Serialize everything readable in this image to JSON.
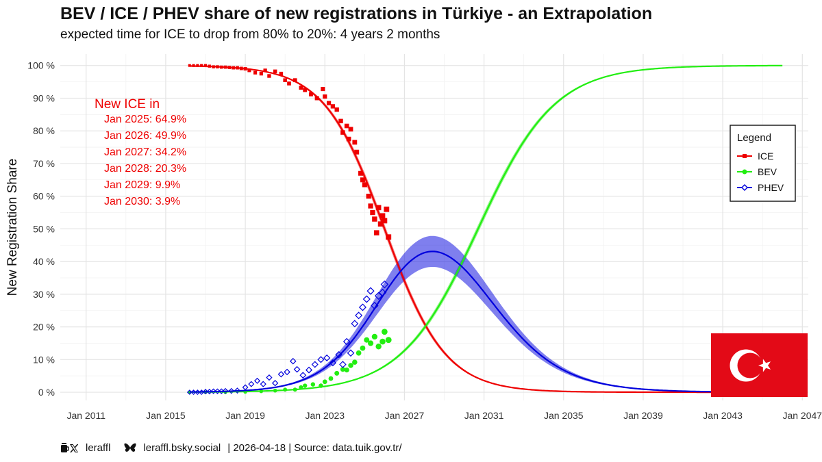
{
  "chart_data": {
    "type": "line",
    "title": "BEV / ICE / PHEV share of new registrations in Türkiye - an Extrapolation",
    "subtitle": "expected time for ICE to drop from 80% to 20%: 4 years 2 months",
    "ylabel": "New Registration Share",
    "xlabel": "",
    "xlim": [
      2009.7,
      2047.3
    ],
    "ylim": [
      -2.5,
      103.5
    ],
    "x_ticks": [
      {
        "value": 2011,
        "label": "Jan 2011"
      },
      {
        "value": 2015,
        "label": "Jan 2015"
      },
      {
        "value": 2019,
        "label": "Jan 2019"
      },
      {
        "value": 2023,
        "label": "Jan 2023"
      },
      {
        "value": 2027,
        "label": "Jan 2027"
      },
      {
        "value": 2031,
        "label": "Jan 2031"
      },
      {
        "value": 2035,
        "label": "Jan 2035"
      },
      {
        "value": 2039,
        "label": "Jan 2039"
      },
      {
        "value": 2043,
        "label": "Jan 2043"
      },
      {
        "value": 2047,
        "label": "Jan 2047"
      }
    ],
    "y_ticks": [
      {
        "value": 0,
        "label": "0 %"
      },
      {
        "value": 10,
        "label": "10 %"
      },
      {
        "value": 20,
        "label": "20 %"
      },
      {
        "value": 30,
        "label": "30 %"
      },
      {
        "value": 40,
        "label": "40 %"
      },
      {
        "value": 50,
        "label": "50 %"
      },
      {
        "value": 60,
        "label": "60 %"
      },
      {
        "value": 70,
        "label": "70 %"
      },
      {
        "value": 80,
        "label": "80 %"
      },
      {
        "value": 90,
        "label": "90 %"
      },
      {
        "value": 100,
        "label": "100 %"
      }
    ],
    "series": [
      {
        "name": "ICE",
        "color": "#ee0000",
        "fit": {
          "model": "logistic_decreasing",
          "midpoint": 2026.0,
          "rate": 0.66,
          "x_range": [
            2016.2,
            2045.9
          ],
          "band_halfwidth": 1.3
        },
        "observed": [
          [
            2016.2,
            100
          ],
          [
            2016.4,
            100
          ],
          [
            2016.6,
            100
          ],
          [
            2016.8,
            100
          ],
          [
            2017.0,
            100
          ],
          [
            2017.2,
            99.8
          ],
          [
            2017.4,
            99.6
          ],
          [
            2017.6,
            99.6
          ],
          [
            2017.8,
            99.5
          ],
          [
            2018.0,
            99.5
          ],
          [
            2018.2,
            99.4
          ],
          [
            2018.4,
            99.3
          ],
          [
            2018.6,
            99.3
          ],
          [
            2018.8,
            99.1
          ],
          [
            2019.0,
            99.0
          ],
          [
            2019.2,
            98.5
          ],
          [
            2019.5,
            97.8
          ],
          [
            2019.8,
            97.5
          ],
          [
            2020.0,
            98.5
          ],
          [
            2020.2,
            96.8
          ],
          [
            2020.5,
            98.2
          ],
          [
            2020.8,
            97.5
          ],
          [
            2021.0,
            95.5
          ],
          [
            2021.2,
            94.5
          ],
          [
            2021.5,
            95.5
          ],
          [
            2021.8,
            93.2
          ],
          [
            2022.0,
            92.5
          ],
          [
            2022.3,
            91.2
          ],
          [
            2022.6,
            90.0
          ],
          [
            2022.9,
            92.8
          ],
          [
            2023.0,
            90.5
          ],
          [
            2023.2,
            88.5
          ],
          [
            2023.4,
            87.5
          ],
          [
            2023.6,
            86.5
          ],
          [
            2023.8,
            83.0
          ],
          [
            2023.9,
            79.5
          ],
          [
            2024.1,
            81.5
          ],
          [
            2024.2,
            77.5
          ],
          [
            2024.3,
            80.5
          ],
          [
            2024.5,
            76.5
          ],
          [
            2024.6,
            73.5
          ],
          [
            2024.8,
            67.0
          ],
          [
            2024.9,
            65.0
          ],
          [
            2025.0,
            63.5
          ],
          [
            2025.2,
            60.0
          ],
          [
            2025.3,
            57.0
          ],
          [
            2025.4,
            55.0
          ],
          [
            2025.5,
            53.0
          ],
          [
            2025.6,
            48.8
          ],
          [
            2025.7,
            56.5
          ],
          [
            2025.8,
            51.5
          ],
          [
            2025.9,
            54.0
          ],
          [
            2026.0,
            52.5
          ],
          [
            2026.1,
            56.0
          ],
          [
            2026.2,
            47.5
          ]
        ]
      },
      {
        "name": "BEV",
        "color": "#22ee11",
        "fit": {
          "model": "logistic_increasing",
          "midpoint": 2030.7,
          "rate": 0.52,
          "x_range": [
            2016.2,
            2046.0
          ],
          "band_halfwidth": 1.2
        },
        "observed": [
          [
            2016.2,
            0
          ],
          [
            2017.0,
            0
          ],
          [
            2018.0,
            0
          ],
          [
            2019.0,
            0.1
          ],
          [
            2019.8,
            0.3
          ],
          [
            2020.5,
            0.5
          ],
          [
            2021.0,
            0.8
          ],
          [
            2021.5,
            0.8
          ],
          [
            2021.8,
            1.5
          ],
          [
            2022.0,
            2.0
          ],
          [
            2022.4,
            2.4
          ],
          [
            2022.8,
            2.0
          ],
          [
            2023.0,
            3.2
          ],
          [
            2023.3,
            4.2
          ],
          [
            2023.6,
            5.8
          ],
          [
            2023.9,
            7.0
          ],
          [
            2024.1,
            6.8
          ],
          [
            2024.3,
            8.2
          ],
          [
            2024.5,
            9.2
          ],
          [
            2024.7,
            12.0
          ],
          [
            2024.9,
            13.5
          ],
          [
            2025.1,
            16.0
          ],
          [
            2025.3,
            15.0
          ],
          [
            2025.5,
            17.0
          ],
          [
            2025.7,
            14.0
          ],
          [
            2025.9,
            15.5
          ],
          [
            2026.0,
            18.5
          ],
          [
            2026.2,
            16.0
          ]
        ]
      },
      {
        "name": "PHEV",
        "color": "#0000dd",
        "fit": {
          "model": "bump",
          "peak_x": 2028.5,
          "peak_value": 43.1,
          "x_range": [
            2016.2,
            2045.9
          ]
        },
        "observed": [
          [
            2016.2,
            0
          ],
          [
            2016.4,
            0
          ],
          [
            2016.6,
            0
          ],
          [
            2016.8,
            0
          ],
          [
            2017.0,
            0.2
          ],
          [
            2017.2,
            0.2
          ],
          [
            2017.4,
            0.3
          ],
          [
            2017.6,
            0.3
          ],
          [
            2017.8,
            0.3
          ],
          [
            2018.0,
            0.4
          ],
          [
            2018.3,
            0.4
          ],
          [
            2018.6,
            0.5
          ],
          [
            2019.0,
            1.5
          ],
          [
            2019.3,
            2.5
          ],
          [
            2019.6,
            3.5
          ],
          [
            2019.9,
            2.5
          ],
          [
            2020.2,
            4.5
          ],
          [
            2020.5,
            2.8
          ],
          [
            2020.8,
            5.5
          ],
          [
            2021.1,
            6.2
          ],
          [
            2021.4,
            9.5
          ],
          [
            2021.6,
            7.0
          ],
          [
            2021.9,
            5.2
          ],
          [
            2022.2,
            6.8
          ],
          [
            2022.5,
            8.5
          ],
          [
            2022.8,
            10.0
          ],
          [
            2023.1,
            10.5
          ],
          [
            2023.4,
            9.0
          ],
          [
            2023.7,
            11.5
          ],
          [
            2023.9,
            8.5
          ],
          [
            2024.1,
            15.5
          ],
          [
            2024.3,
            12.0
          ],
          [
            2024.5,
            21.0
          ],
          [
            2024.7,
            23.5
          ],
          [
            2024.9,
            26.0
          ],
          [
            2025.1,
            28.5
          ],
          [
            2025.3,
            31.0
          ],
          [
            2025.5,
            26.5
          ],
          [
            2025.7,
            29.5
          ],
          [
            2025.9,
            30.5
          ],
          [
            2026.0,
            33.0
          ]
        ]
      }
    ],
    "annotation": {
      "header": "New ICE in",
      "color": "#ee0000",
      "lines": [
        "Jan 2025: 64.9%",
        "Jan 2026: 49.9%",
        "Jan 2027: 34.2%",
        "Jan 2028: 20.3%",
        "Jan 2029: 9.9%",
        "Jan 2030: 3.9%"
      ]
    },
    "legend": {
      "title": "Legend",
      "position": "right",
      "items": [
        {
          "label": "ICE",
          "color": "#ee0000",
          "marker": "square"
        },
        {
          "label": "BEV",
          "color": "#22ee11",
          "marker": "circle"
        },
        {
          "label": "PHEV",
          "color": "#0000dd",
          "marker": "diamond"
        }
      ]
    },
    "flag": {
      "name": "Türkiye",
      "color": "#e30a17",
      "position": "bottom-right"
    }
  },
  "footer": {
    "x_handle": "leraffl",
    "bsky_handle": "leraffl.bsky.social",
    "info": "| 2026-04-18 | Source: data.tuik.gov.tr/"
  }
}
